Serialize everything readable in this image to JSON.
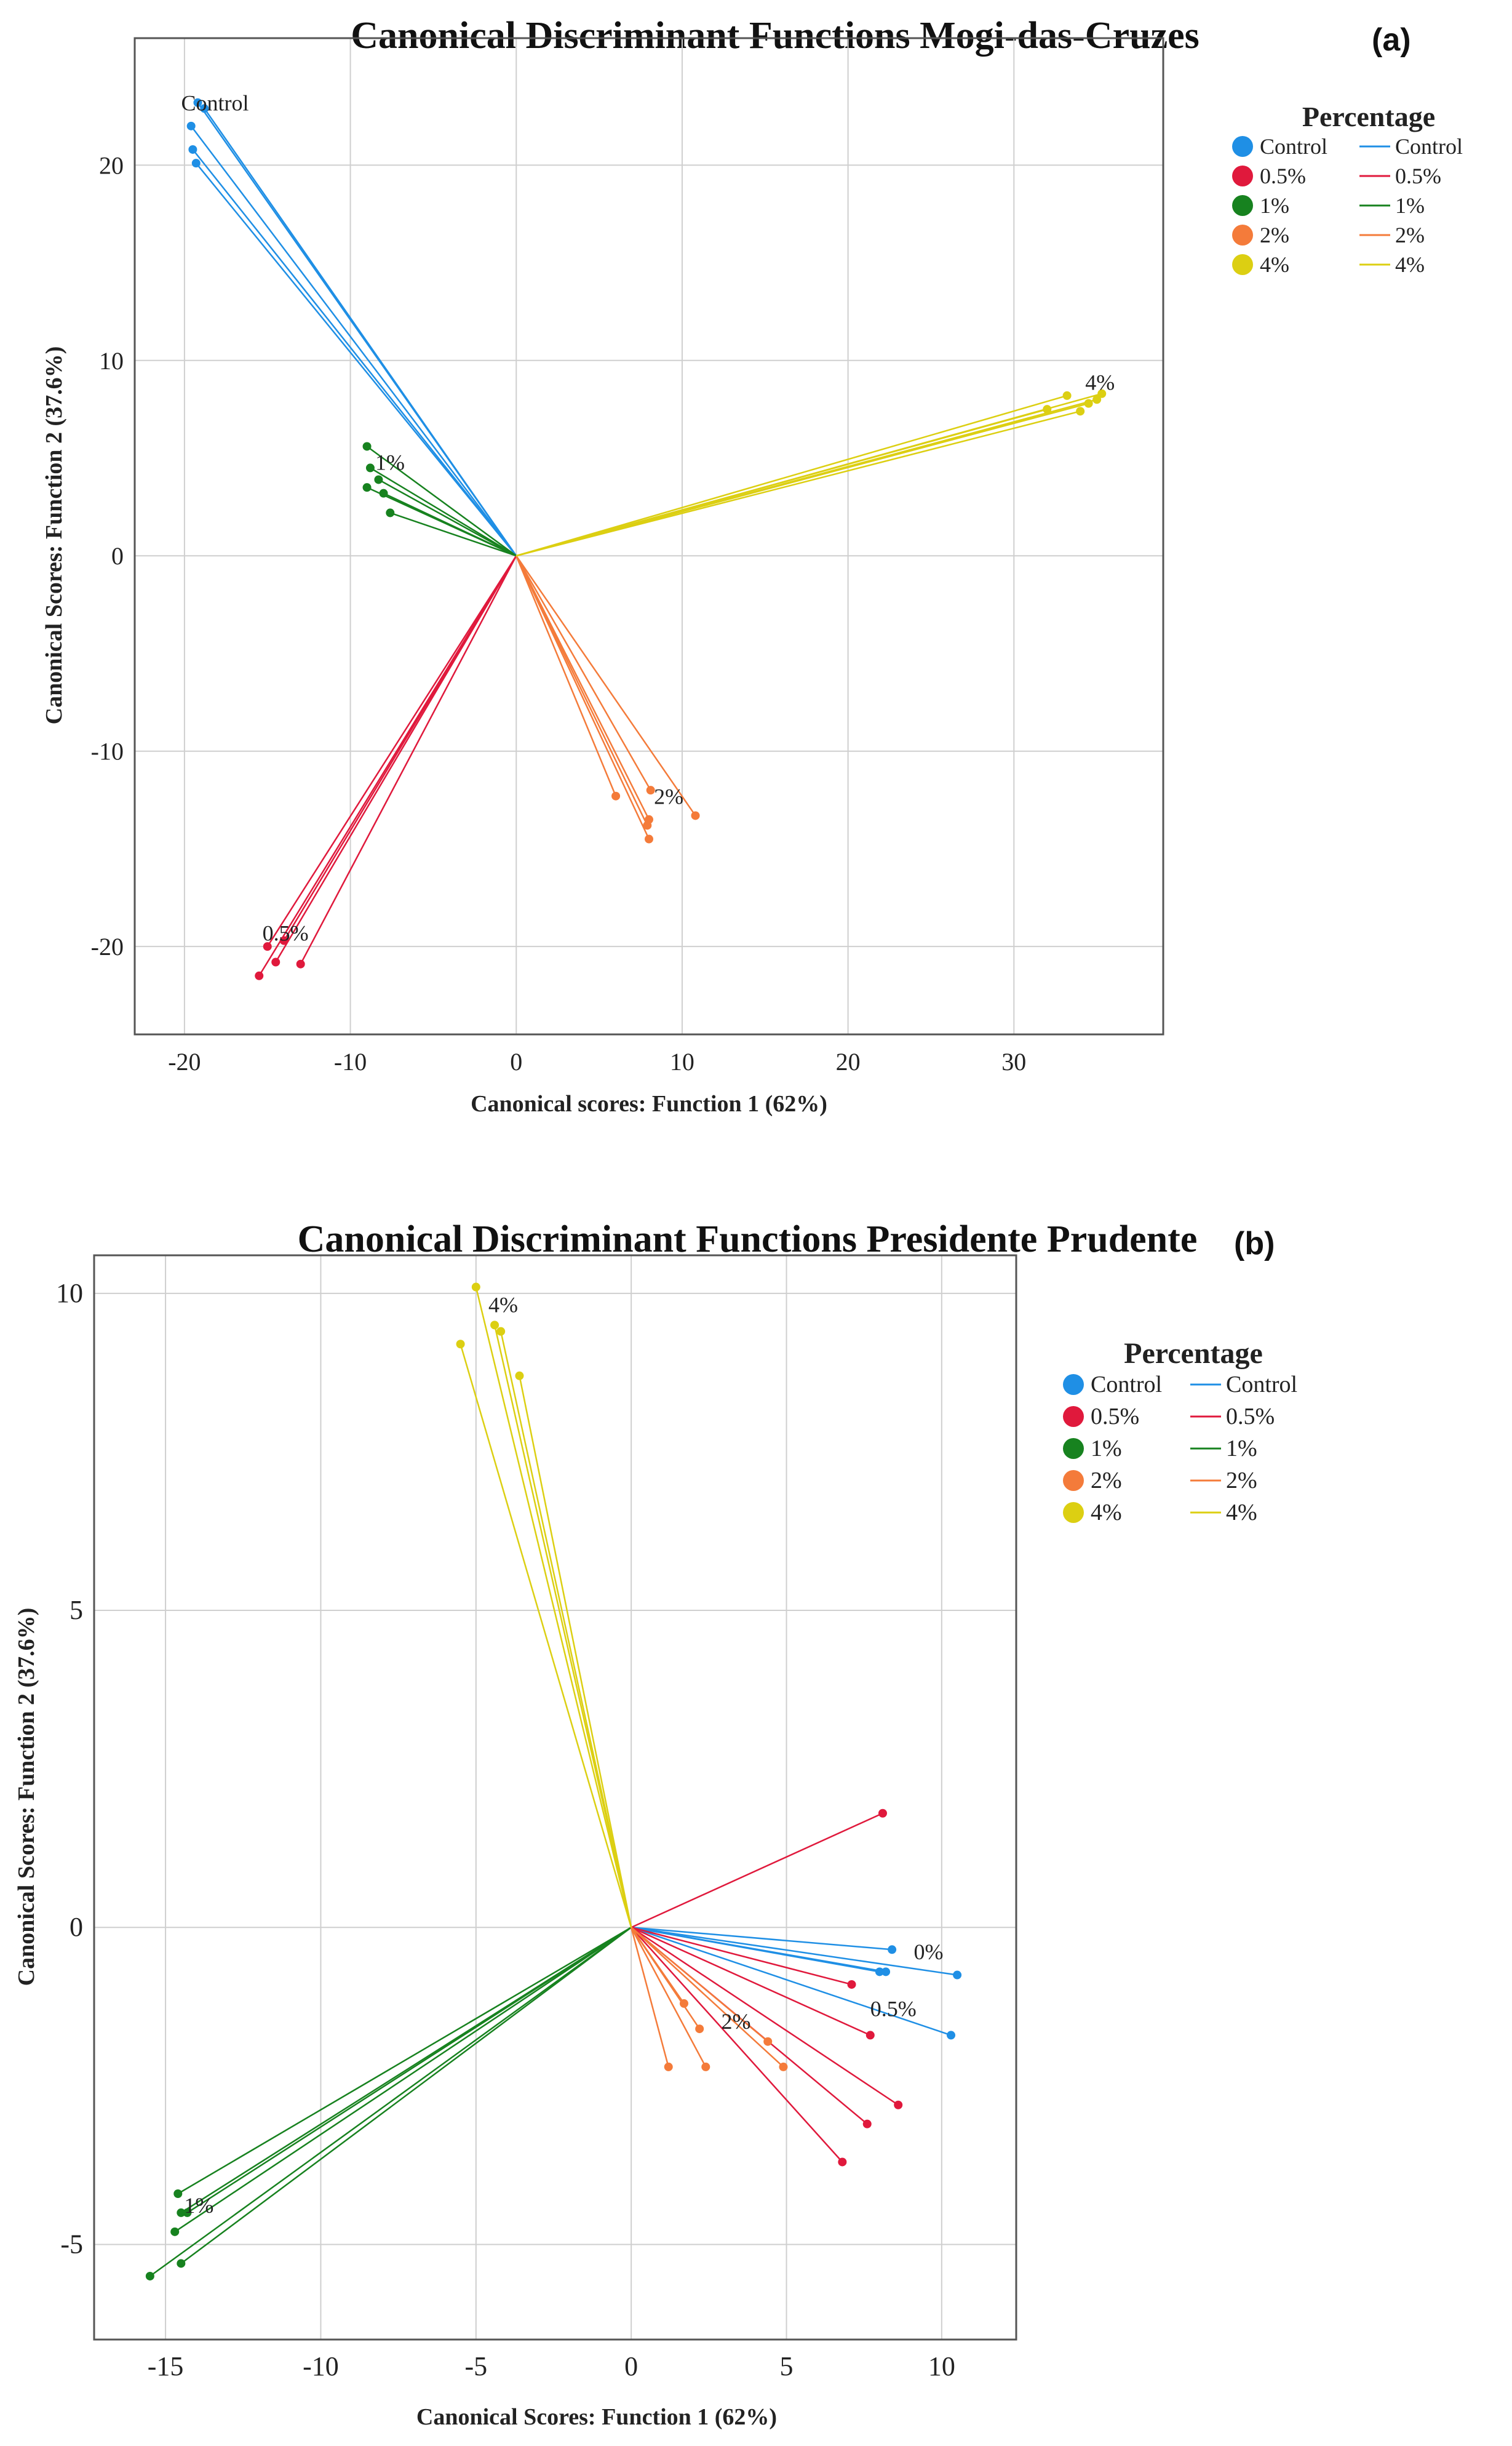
{
  "chart_data": [
    {
      "type": "scatter",
      "panel_label": "(a)",
      "title": "Canonical Discriminant Functions Mogi-das-Cruzes",
      "xlabel": "Canonical scores: Function 1 (62%)",
      "ylabel": "Canonical Scores: Function 2 (37.6%)",
      "xlim": [
        -23,
        39
      ],
      "ylim": [
        -24.5,
        26.5
      ],
      "xticks": [
        -20,
        -10,
        0,
        10,
        20,
        30
      ],
      "yticks": [
        -20,
        -10,
        0,
        10,
        20
      ],
      "xtick_labels": [
        "-20",
        "-10",
        "0",
        "10",
        "20",
        "30"
      ],
      "ytick_labels": [
        "-20",
        "-10",
        "0",
        "10",
        "20"
      ],
      "grid": true,
      "centroid": [
        0,
        0
      ],
      "legend": {
        "title": "Percentage",
        "position": "top-right"
      },
      "series": [
        {
          "name": "Control",
          "label": "Control",
          "color": "#1f8fe5",
          "points": [
            [
              -19.2,
              23.2
            ],
            [
              -19.6,
              22.0
            ],
            [
              -19.5,
              20.8
            ],
            [
              -19.3,
              20.1
            ],
            [
              -18.8,
              22.9
            ]
          ]
        },
        {
          "name": "0.5%",
          "label": "0.5%",
          "color": "#e0193c",
          "points": [
            [
              -15.5,
              -21.5
            ],
            [
              -15.0,
              -20.0
            ],
            [
              -14.5,
              -20.8
            ],
            [
              -14.0,
              -19.7
            ],
            [
              -13.0,
              -20.9
            ]
          ]
        },
        {
          "name": "1%",
          "label": "1%",
          "color": "#17821f",
          "points": [
            [
              -9.0,
              5.6
            ],
            [
              -8.8,
              4.5
            ],
            [
              -8.3,
              3.9
            ],
            [
              -9.0,
              3.5
            ],
            [
              -8.0,
              3.2
            ],
            [
              -7.6,
              2.2
            ]
          ]
        },
        {
          "name": "2%",
          "label": "2%",
          "color": "#f47b3a",
          "points": [
            [
              6.0,
              -12.3
            ],
            [
              8.0,
              -13.5
            ],
            [
              7.9,
              -13.8
            ],
            [
              8.0,
              -14.5
            ],
            [
              10.8,
              -13.3
            ],
            [
              8.1,
              -12.0
            ]
          ]
        },
        {
          "name": "4%",
          "label": "4%",
          "color": "#dccf12",
          "points": [
            [
              32.0,
              7.5
            ],
            [
              33.2,
              8.2
            ],
            [
              34.0,
              7.4
            ],
            [
              34.5,
              7.8
            ],
            [
              35.0,
              8.0
            ],
            [
              35.3,
              8.3
            ]
          ]
        }
      ],
      "annotations": [
        {
          "text": "Control",
          "x": -20.2,
          "y": 22.8
        },
        {
          "text": "0.5%",
          "x": -15.3,
          "y": -19.7
        },
        {
          "text": "1%",
          "x": -8.5,
          "y": 4.4
        },
        {
          "text": "2%",
          "x": 8.3,
          "y": -12.7
        },
        {
          "text": "4%",
          "x": 34.3,
          "y": 8.5
        }
      ]
    },
    {
      "type": "scatter",
      "panel_label": "(b)",
      "title": "Canonical Discriminant Functions Presidente Prudente",
      "xlabel": "Canonical Scores: Function 1 (62%)",
      "ylabel": "Canonical Scores: Function 2 (37.6%)",
      "xlim": [
        -17.3,
        12.4
      ],
      "ylim": [
        -6.5,
        10.6
      ],
      "xticks": [
        -15,
        -10,
        -5,
        0,
        5,
        10
      ],
      "yticks": [
        -5,
        0,
        5,
        10
      ],
      "xtick_labels": [
        "-15",
        "-10",
        "-5",
        "0",
        "5",
        "10"
      ],
      "ytick_labels": [
        "-5",
        "0",
        "5",
        "10"
      ],
      "grid": true,
      "centroid": [
        0,
        0
      ],
      "legend": {
        "title": "Percentage",
        "position": "right"
      },
      "series": [
        {
          "name": "Control",
          "label": "Control",
          "color": "#1f8fe5",
          "points": [
            [
              8.4,
              -0.35
            ],
            [
              8.0,
              -0.7
            ],
            [
              8.2,
              -0.7
            ],
            [
              10.5,
              -0.75
            ],
            [
              10.3,
              -1.7
            ]
          ]
        },
        {
          "name": "0.5%",
          "label": "0.5%",
          "color": "#e0193c",
          "points": [
            [
              8.1,
              1.8
            ],
            [
              7.1,
              -0.9
            ],
            [
              7.7,
              -1.7
            ],
            [
              8.6,
              -2.8
            ],
            [
              7.6,
              -3.1
            ],
            [
              6.8,
              -3.7
            ]
          ]
        },
        {
          "name": "1%",
          "label": "1%",
          "color": "#17821f",
          "points": [
            [
              -14.6,
              -4.2
            ],
            [
              -14.5,
              -4.5
            ],
            [
              -14.3,
              -4.5
            ],
            [
              -14.7,
              -4.8
            ],
            [
              -14.5,
              -5.3
            ],
            [
              -15.5,
              -5.5
            ]
          ]
        },
        {
          "name": "2%",
          "label": "2%",
          "color": "#f47b3a",
          "points": [
            [
              1.7,
              -1.2
            ],
            [
              2.2,
              -1.6
            ],
            [
              4.4,
              -1.8
            ],
            [
              4.9,
              -2.2
            ],
            [
              1.2,
              -2.2
            ],
            [
              2.4,
              -2.2
            ]
          ]
        },
        {
          "name": "4%",
          "label": "4%",
          "color": "#dccf12",
          "points": [
            [
              -5.0,
              10.1
            ],
            [
              -4.4,
              9.5
            ],
            [
              -4.2,
              9.4
            ],
            [
              -3.6,
              8.7
            ],
            [
              -5.5,
              9.2
            ]
          ]
        }
      ],
      "annotations": [
        {
          "text": "0%",
          "x": 9.1,
          "y": -0.5
        },
        {
          "text": "0.5%",
          "x": 7.7,
          "y": -1.4
        },
        {
          "text": "1%",
          "x": -14.4,
          "y": -4.5
        },
        {
          "text": "2%",
          "x": 2.9,
          "y": -1.6
        },
        {
          "text": "4%",
          "x": -4.6,
          "y": 9.7
        }
      ]
    }
  ]
}
